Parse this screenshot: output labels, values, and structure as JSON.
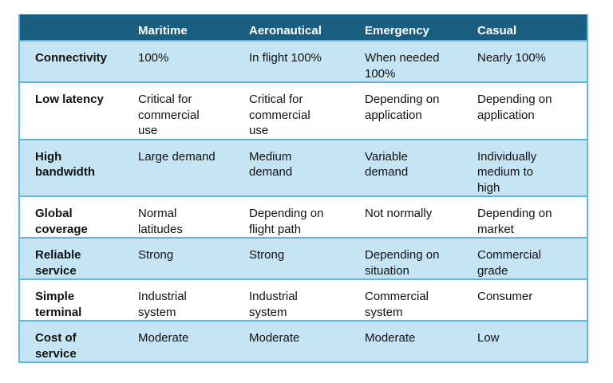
{
  "table": {
    "columns": [
      "Maritime",
      "Aeronautical",
      "Emergency",
      "Casual"
    ],
    "rows": [
      [
        "Connectivity",
        "100%",
        "In flight 100%",
        "When needed 100%",
        "Nearly 100%"
      ],
      [
        "Low latency",
        "Critical for commercial use",
        "Critical for commercial use",
        "Depending on application",
        "Depending on application"
      ],
      [
        "High bandwidth",
        "Large demand",
        "Medium demand",
        "Variable demand",
        "Individually medium to high"
      ],
      [
        "Global coverage",
        "Normal latitudes",
        "Depending on flight path",
        "Not normally",
        "Depending on market"
      ],
      [
        "Reliable service",
        "Strong",
        "Strong",
        "Depending on situation",
        "Commercial grade"
      ],
      [
        "Simple terminal",
        "Industrial system",
        "Industrial system",
        "Commercial system",
        "Consumer"
      ],
      [
        "Cost of service",
        "Moderate",
        "Moderate",
        "Moderate",
        "Low"
      ]
    ]
  }
}
